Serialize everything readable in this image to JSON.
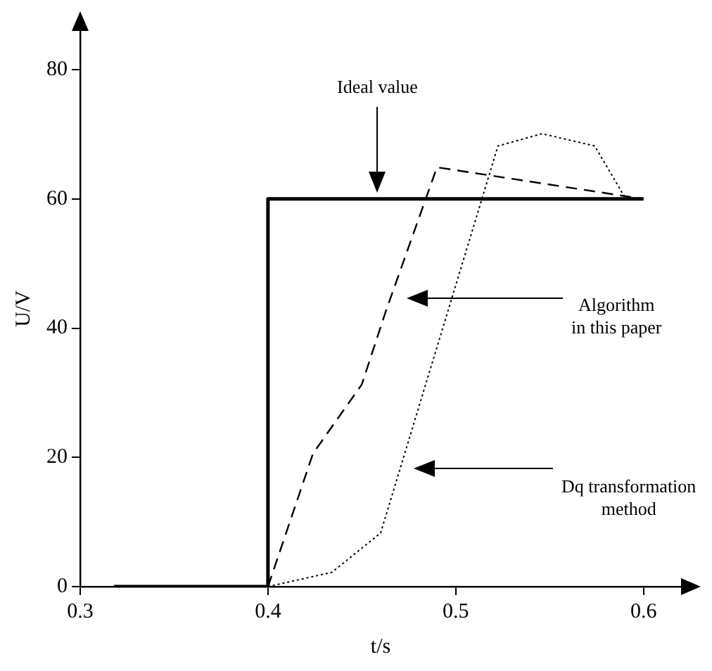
{
  "chart_data": {
    "type": "line",
    "xlabel": "t/s",
    "ylabel": "U/V",
    "xlim": [
      0.3,
      0.62
    ],
    "ylim": [
      0,
      86
    ],
    "xticks": [
      0.3,
      0.4,
      0.5,
      0.6
    ],
    "yticks": [
      0,
      20,
      40,
      60,
      80
    ],
    "grid": false,
    "legend": false,
    "marker": "none",
    "series": [
      {
        "color": "#000000",
        "line_style": "solid",
        "x": [
          0.318,
          0.4,
          0.4,
          0.6
        ],
        "values": [
          0,
          0,
          60,
          60
        ]
      },
      {
        "color": "#000000",
        "line_style": "dashed",
        "x": [
          0.4,
          0.424,
          0.45,
          0.4625,
          0.49,
          0.6
        ],
        "values": [
          0,
          20.6,
          31.3,
          42.4,
          64.9,
          60
        ]
      },
      {
        "color": "#000000",
        "line_style": "dotted",
        "x": [
          0.4,
          0.434,
          0.46,
          0.5225,
          0.546,
          0.574,
          0.59,
          0.6
        ],
        "values": [
          0,
          2.2,
          8.3,
          68.2,
          70.1,
          68.2,
          60.3,
          60
        ]
      }
    ],
    "annotations": [
      "Ideal value",
      "Algorithm\nin this paper",
      "Dq transformation\nmethod"
    ]
  }
}
